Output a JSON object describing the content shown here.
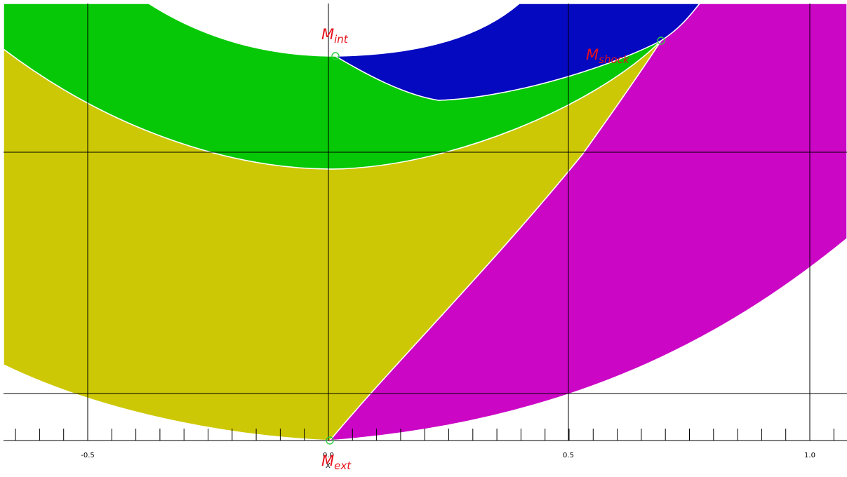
{
  "colors": {
    "green_region": "#06c806",
    "blue_region": "#0509c0",
    "yellow_region": "#cdc805",
    "magenta_region": "#cb06c5",
    "point_marker": "#2ecc40",
    "point_label": "#e8101a"
  },
  "axis": {
    "tick_labels": [
      "-0.5",
      "0.0",
      "0.5",
      "1.0"
    ]
  },
  "points": [
    {
      "id": "int",
      "label_main": "M",
      "label_sub": "int"
    },
    {
      "id": "shock",
      "label_main": "M",
      "label_sub": "shock"
    },
    {
      "id": "ext",
      "label_main": "M",
      "label_sub": "ext"
    }
  ],
  "axis_marker": "X"
}
